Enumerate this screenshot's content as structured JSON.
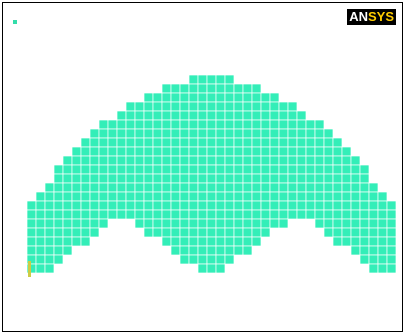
{
  "logo": {
    "text_a": "AN",
    "text_b": "SYS"
  },
  "mesh": {
    "fill_color": "#33eeb8",
    "line_color": "#ffffff",
    "background": "#ffffff"
  },
  "triad_color": "#33ddaa"
}
